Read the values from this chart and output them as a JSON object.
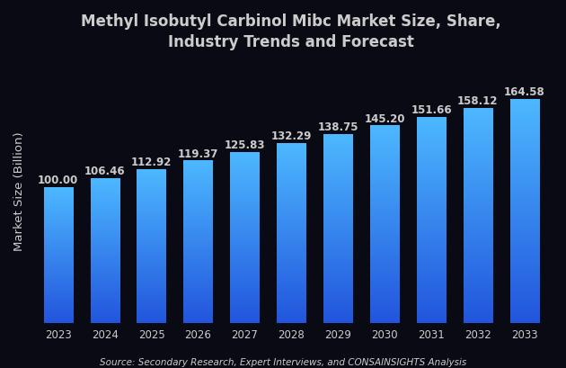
{
  "title": "Methyl Isobutyl Carbinol Mibc Market Size, Share,\nIndustry Trends and Forecast",
  "ylabel": "Market Size (Billion)",
  "source": "Source: Secondary Research, Expert Interviews, and CONSAINSIGHTS Analysis",
  "years": [
    "2023",
    "2024",
    "2025",
    "2026",
    "2027",
    "2028",
    "2029",
    "2030",
    "2031",
    "2032",
    "2033"
  ],
  "values": [
    100.0,
    106.46,
    112.92,
    119.37,
    125.83,
    132.29,
    138.75,
    145.2,
    151.66,
    158.12,
    164.58
  ],
  "bar_color_top": "#4db8ff",
  "bar_color_bottom": "#2255dd",
  "background_color": "#0a0a14",
  "text_color": "#cccccc",
  "label_fontsize": 8.5,
  "title_fontsize": 12,
  "ylabel_fontsize": 9.5,
  "source_fontsize": 7.5,
  "bar_width": 0.62,
  "ylim": [
    0,
    195
  ]
}
